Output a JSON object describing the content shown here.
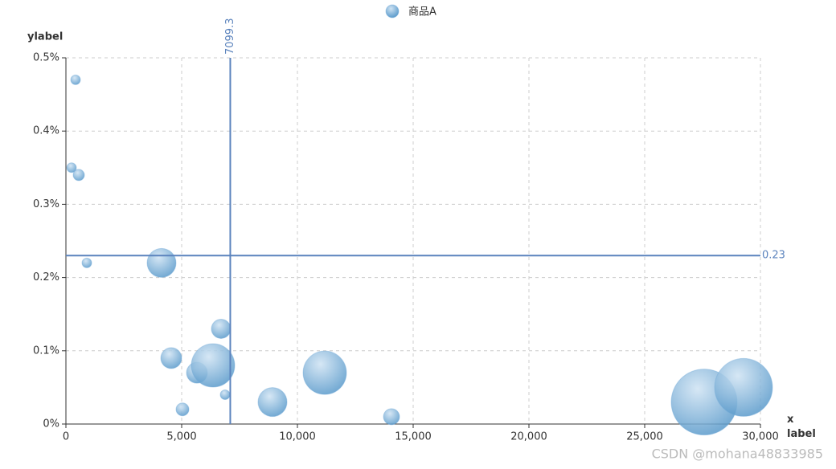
{
  "chart_data": {
    "type": "scatter",
    "title": "",
    "legend_position": "top",
    "xlabel": "x label",
    "ylabel": "ylabel",
    "series": [
      {
        "name": "商品A",
        "color": "#6fa8d6",
        "x": [
          417,
          243,
          556,
          903,
          4132,
          4549,
          5660,
          6354,
          6701,
          6875,
          5035,
          8924,
          11181,
          14063,
          27569,
          29271
        ],
        "values": [
          0.47,
          0.35,
          0.34,
          0.22,
          0.22,
          0.09,
          0.07,
          0.08,
          0.13,
          0.04,
          0.02,
          0.03,
          0.07,
          0.01,
          0.03,
          0.05
        ],
        "sizes": [
          12,
          12,
          14,
          12,
          36,
          26,
          26,
          54,
          24,
          12,
          16,
          36,
          54,
          20,
          82,
          72
        ]
      }
    ],
    "xlim": [
      0,
      30000
    ],
    "xticks": [
      0,
      {
        "value": 5000,
        "label": "5,000"
      },
      {
        "value": 10000,
        "label": "10,000"
      },
      {
        "value": 15000,
        "label": "15,000"
      },
      {
        "value": 20000,
        "label": "20,000"
      },
      {
        "value": 25000,
        "label": "25,000"
      },
      {
        "value": 30000,
        "label": "30,000"
      }
    ],
    "ylim": [
      0,
      0.5
    ],
    "yticks": [
      {
        "value": 0,
        "label": "0%"
      },
      {
        "value": 0.1,
        "label": "0.1%"
      },
      {
        "value": 0.2,
        "label": "0.2%"
      },
      {
        "value": 0.3,
        "label": "0.3%"
      },
      {
        "value": 0.4,
        "label": "0.4%"
      },
      {
        "value": 0.5,
        "label": "0.5%"
      }
    ],
    "grid": true,
    "mark_lines": {
      "x": 7099.3,
      "y": 0.23,
      "color": "#5b83bd"
    }
  },
  "watermark": "CSDN @mohana48833985"
}
